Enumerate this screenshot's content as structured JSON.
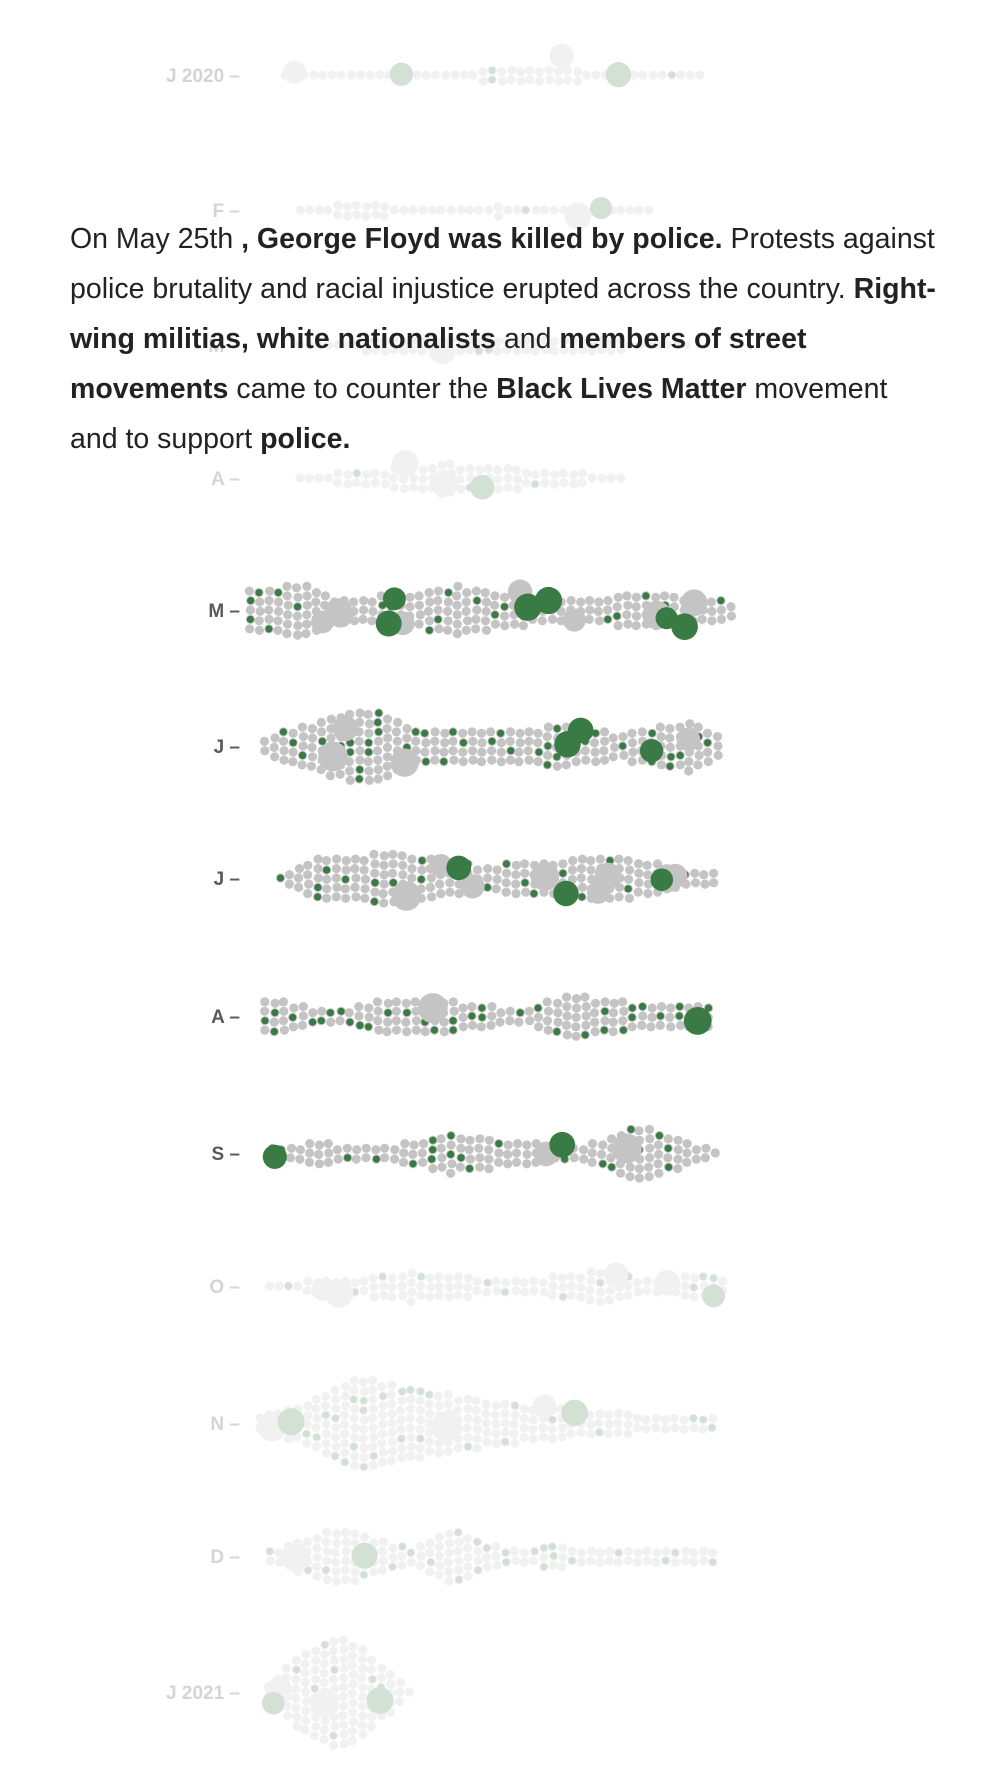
{
  "narrative": {
    "parts": [
      {
        "text": "On May 25th ",
        "bold": false
      },
      {
        "text": ", George Floyd was killed by police.",
        "bold": true
      },
      {
        "text": " Protests against police brutality and racial injustice erupted across the country. ",
        "bold": false
      },
      {
        "text": "Right-wing militias, white nationalists",
        "bold": true
      },
      {
        "text": " and ",
        "bold": false
      },
      {
        "text": "members of street movements",
        "bold": true
      },
      {
        "text": " came to counter the ",
        "bold": false
      },
      {
        "text": "Black Lives Matter",
        "bold": true
      },
      {
        "text": " movement and to support ",
        "bold": false
      },
      {
        "text": "police.",
        "bold": true
      }
    ]
  },
  "colors": {
    "event_gray": "#c4c4c4",
    "event_green": "#3a7a45",
    "label": "#5a5a5a",
    "faded_label": "#d4d4d4",
    "text": "#222222"
  },
  "chart_data": {
    "type": "beeswarm",
    "x_axis": "day of month",
    "y_axis": "month",
    "months": [
      {
        "label": "J 2020",
        "highlighted": false,
        "events": 40,
        "green_small": 3,
        "large_gray": 2,
        "large_green": 2
      },
      {
        "label": "F",
        "highlighted": false,
        "events": 35,
        "green_small": 2,
        "large_gray": 1,
        "large_green": 1
      },
      {
        "label": "M",
        "highlighted": false,
        "events": 60,
        "green_small": 3,
        "large_gray": 1,
        "large_green": 0
      },
      {
        "label": "A",
        "highlighted": false,
        "events": 70,
        "green_small": 3,
        "large_gray": 2,
        "large_green": 1
      },
      {
        "label": "M",
        "highlighted": true,
        "events": 190,
        "green_small": 22,
        "large_gray": 8,
        "large_green": 6
      },
      {
        "label": "J",
        "highlighted": true,
        "events": 210,
        "green_small": 45,
        "large_gray": 4,
        "large_green": 3
      },
      {
        "label": "J",
        "highlighted": true,
        "events": 180,
        "green_small": 25,
        "large_gray": 8,
        "large_green": 3
      },
      {
        "label": "A",
        "highlighted": true,
        "events": 140,
        "green_small": 38,
        "large_gray": 1,
        "large_green": 1
      },
      {
        "label": "S",
        "highlighted": true,
        "events": 130,
        "green_small": 26,
        "large_gray": 2,
        "large_green": 2
      },
      {
        "label": "O",
        "highlighted": false,
        "events": 110,
        "green_small": 14,
        "large_gray": 4,
        "large_green": 1
      },
      {
        "label": "N",
        "highlighted": false,
        "events": 220,
        "green_small": 30,
        "large_gray": 3,
        "large_green": 2
      },
      {
        "label": "D",
        "highlighted": false,
        "events": 140,
        "green_small": 25,
        "large_gray": 1,
        "large_green": 1
      },
      {
        "label": "J 2021",
        "highlighted": false,
        "events": 110,
        "green_small": 10,
        "large_gray": 2,
        "large_green": 2
      }
    ]
  }
}
